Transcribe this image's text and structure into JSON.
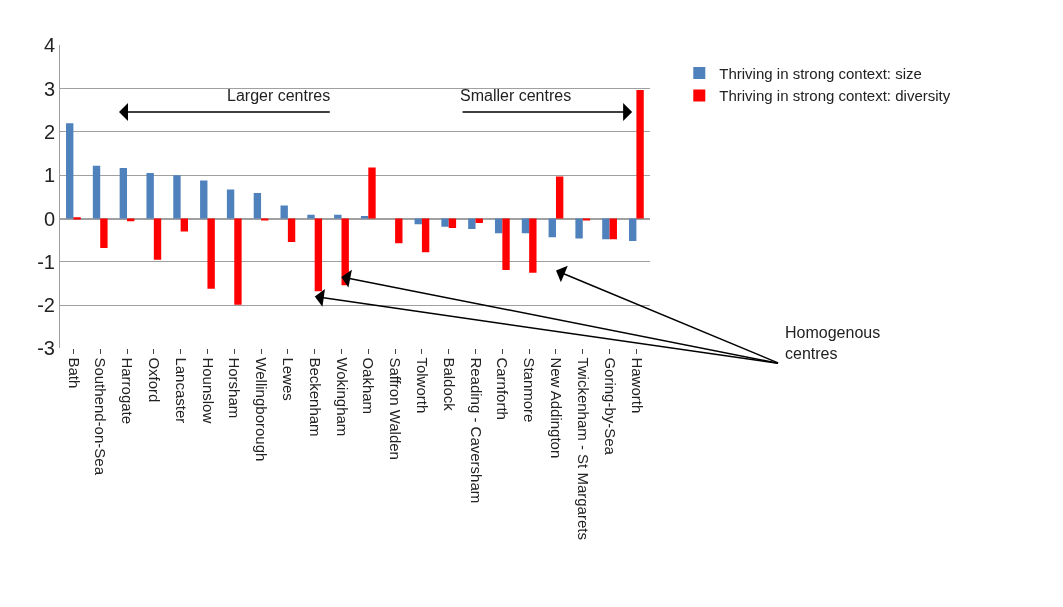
{
  "chart_data": {
    "type": "bar",
    "categories": [
      "Bath",
      "Southend-on-Sea",
      "Harrogate",
      "Oxford",
      "Lancaster",
      "Hounslow",
      "Horsham",
      "Wellingborough",
      "Lewes",
      "Beckenham",
      "Wokingham",
      "Oakham",
      "Saffron Walden",
      "Tolworth",
      "Baldock",
      "Reading - Caversham",
      "Carnforth",
      "Stanmore",
      "New Addington",
      "Twickenham - St Margarets",
      "Goring-by-Sea",
      "Haworth"
    ],
    "series": [
      {
        "name": "Thriving in strong context: size",
        "color": "#4f81bd",
        "values": [
          2.2,
          1.22,
          1.17,
          1.05,
          1.0,
          0.88,
          0.67,
          0.59,
          0.3,
          0.09,
          0.09,
          0.06,
          0,
          -0.13,
          -0.19,
          -0.24,
          -0.34,
          -0.34,
          -0.43,
          -0.46,
          -0.48,
          -0.52
        ]
      },
      {
        "name": "Thriving in strong context: diversity",
        "color": "#ff0000",
        "values": [
          0.03,
          -0.68,
          -0.06,
          -0.95,
          -0.3,
          -1.62,
          -1.99,
          -0.04,
          -0.54,
          -1.68,
          -1.54,
          1.18,
          -0.57,
          -0.78,
          -0.22,
          -0.1,
          -1.19,
          -1.25,
          0.97,
          -0.03,
          -0.48,
          2.97
        ]
      }
    ],
    "ylim": [
      -3,
      4
    ],
    "yticks": [
      -3,
      -2,
      -1,
      0,
      1,
      2,
      3,
      4
    ],
    "grid": "y",
    "legend": "right",
    "annotations": [
      "Larger centres",
      "Smaller centres",
      "Homogenous centres"
    ]
  }
}
